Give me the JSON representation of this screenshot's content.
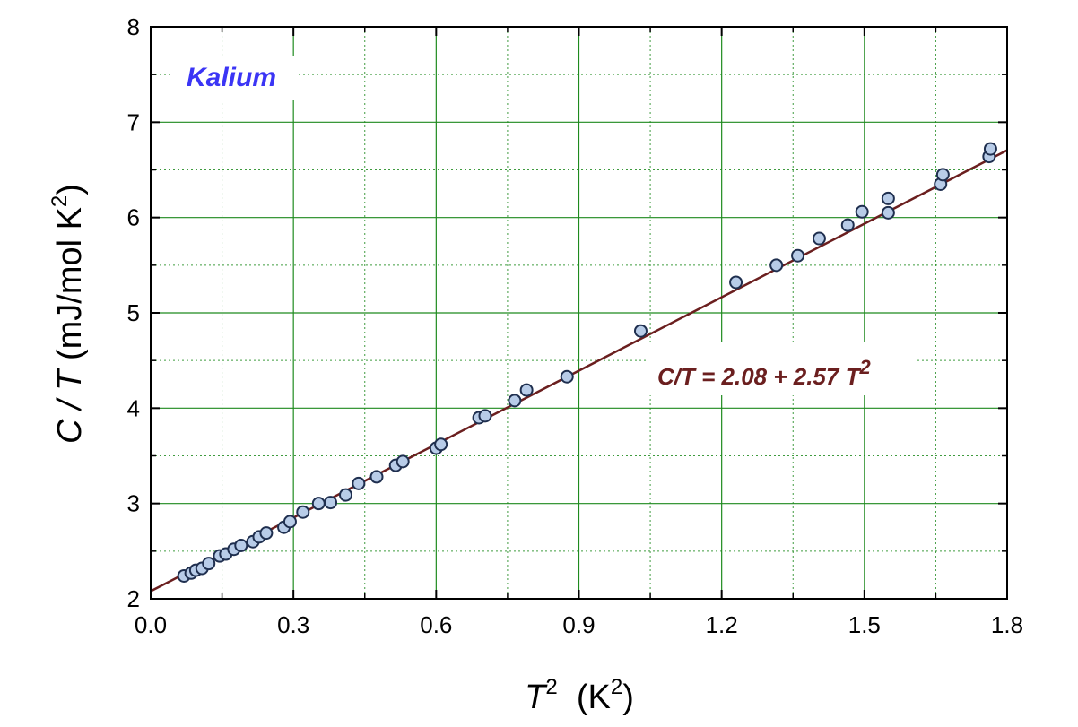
{
  "chart_data": {
    "type": "scatter",
    "x_label": {
      "var": "T",
      "sup": "2",
      "units": "  (K",
      "units_sup": "2",
      "units_close": ")"
    },
    "y_label": {
      "pre": "C / ",
      "var": "T",
      "units": " (mJ/mol K",
      "units_sup": "2",
      "units_close": ")"
    },
    "xlim": [
      0.0,
      1.8
    ],
    "ylim": [
      2,
      8
    ],
    "x_ticks": [
      "0.0",
      "0.3",
      "0.6",
      "0.9",
      "1.2",
      "1.5",
      "1.8"
    ],
    "y_ticks": [
      "2",
      "3",
      "4",
      "5",
      "6",
      "7",
      "8"
    ],
    "x_tick_values": [
      0.0,
      0.3,
      0.6,
      0.9,
      1.2,
      1.5,
      1.8
    ],
    "y_tick_values": [
      2,
      3,
      4,
      5,
      6,
      7,
      8
    ],
    "grid": true,
    "annotations": {
      "sample": "Kalium",
      "sample_color": "#3b35f5",
      "fit_text": "C/T = 2.08 + 2.57 T",
      "fit_sup": "2",
      "fit_color": "#6b1f1f"
    },
    "fit": {
      "intercept": 2.08,
      "slope": 2.57,
      "color": "#6b1f1f"
    },
    "marker": {
      "fill": "#b8cce8",
      "stroke": "#1f2f4f"
    },
    "grid_color": "#1e8a1e",
    "points": [
      [
        0.07,
        2.24
      ],
      [
        0.085,
        2.27
      ],
      [
        0.095,
        2.3
      ],
      [
        0.108,
        2.32
      ],
      [
        0.122,
        2.37
      ],
      [
        0.145,
        2.45
      ],
      [
        0.158,
        2.47
      ],
      [
        0.175,
        2.52
      ],
      [
        0.19,
        2.56
      ],
      [
        0.215,
        2.6
      ],
      [
        0.228,
        2.65
      ],
      [
        0.243,
        2.69
      ],
      [
        0.28,
        2.75
      ],
      [
        0.293,
        2.81
      ],
      [
        0.32,
        2.91
      ],
      [
        0.353,
        3.0
      ],
      [
        0.378,
        3.01
      ],
      [
        0.41,
        3.09
      ],
      [
        0.437,
        3.21
      ],
      [
        0.475,
        3.28
      ],
      [
        0.515,
        3.4
      ],
      [
        0.53,
        3.44
      ],
      [
        0.6,
        3.58
      ],
      [
        0.61,
        3.62
      ],
      [
        0.69,
        3.9
      ],
      [
        0.703,
        3.92
      ],
      [
        0.765,
        4.08
      ],
      [
        0.79,
        4.19
      ],
      [
        0.875,
        4.33
      ],
      [
        1.03,
        4.81
      ],
      [
        1.23,
        5.32
      ],
      [
        1.315,
        5.5
      ],
      [
        1.36,
        5.6
      ],
      [
        1.405,
        5.78
      ],
      [
        1.465,
        5.92
      ],
      [
        1.495,
        6.06
      ],
      [
        1.55,
        6.05
      ],
      [
        1.55,
        6.2
      ],
      [
        1.66,
        6.35
      ],
      [
        1.665,
        6.45
      ],
      [
        1.762,
        6.64
      ],
      [
        1.765,
        6.72
      ]
    ]
  }
}
